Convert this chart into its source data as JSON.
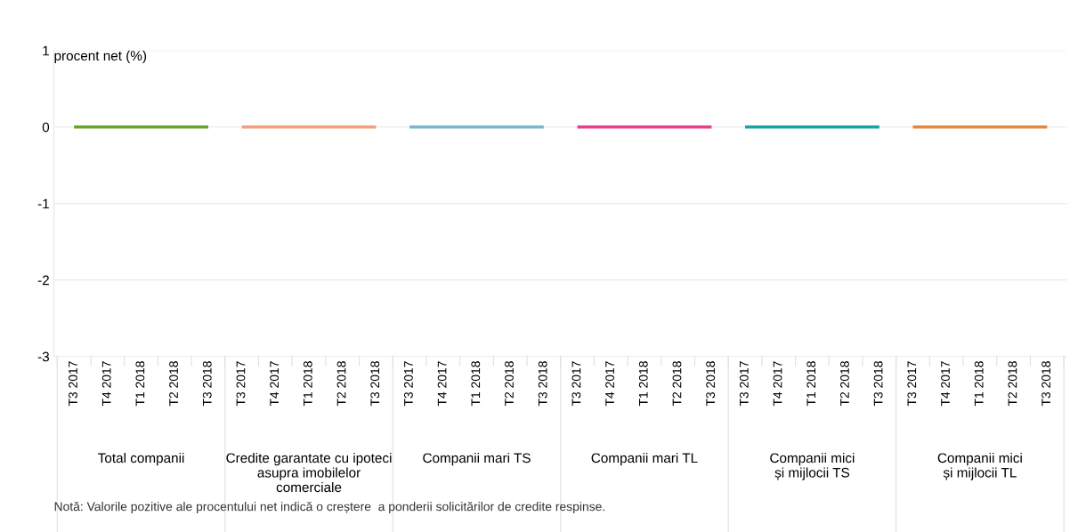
{
  "chart_data": {
    "type": "line",
    "ylabel": "procent net (%)",
    "categories": [
      "T3 2017",
      "T4 2017",
      "T1 2018",
      "T2 2018",
      "T3 2018",
      "T3 2017",
      "T4 2017",
      "T1 2018",
      "T2 2018",
      "T3 2018",
      "T3 2017",
      "T4 2017",
      "T1 2018",
      "T2 2018",
      "T3 2018",
      "T3 2017",
      "T4 2017",
      "T1 2018",
      "T2 2018",
      "T3 2018",
      "T3 2017",
      "T4 2017",
      "T1 2018",
      "T2 2018",
      "T3 2018",
      "T3 2017",
      "T4 2017",
      "T1 2018",
      "T2 2018",
      "T3 2018"
    ],
    "series": [
      {
        "color": "#6aa329",
        "values": [
          0,
          0,
          0,
          0,
          0,
          null,
          null,
          null,
          null,
          null,
          null,
          null,
          null,
          null,
          null,
          null,
          null,
          null,
          null,
          null,
          null,
          null,
          null,
          null,
          null,
          null,
          null,
          null,
          null,
          null
        ]
      },
      {
        "color": "#f4a07a",
        "values": [
          null,
          null,
          null,
          null,
          null,
          0,
          0,
          0,
          0,
          0,
          null,
          null,
          null,
          null,
          null,
          null,
          null,
          null,
          null,
          null,
          null,
          null,
          null,
          null,
          null,
          null,
          null,
          null,
          null,
          null
        ]
      },
      {
        "color": "#7ab8c9",
        "values": [
          null,
          null,
          null,
          null,
          null,
          null,
          null,
          null,
          null,
          null,
          0,
          0,
          0,
          0,
          0,
          null,
          null,
          null,
          null,
          null,
          null,
          null,
          null,
          null,
          null,
          null,
          null,
          null,
          null,
          null
        ]
      },
      {
        "color": "#e8408a",
        "values": [
          null,
          null,
          null,
          null,
          null,
          null,
          null,
          null,
          null,
          null,
          null,
          null,
          null,
          null,
          null,
          0,
          0,
          0,
          0,
          0,
          null,
          null,
          null,
          null,
          null,
          null,
          null,
          null,
          null,
          null
        ]
      },
      {
        "color": "#1aa3a3",
        "values": [
          null,
          null,
          null,
          null,
          null,
          null,
          null,
          null,
          null,
          null,
          null,
          null,
          null,
          null,
          null,
          null,
          null,
          null,
          null,
          null,
          0,
          0,
          0,
          0,
          0,
          null,
          null,
          null,
          null,
          null
        ]
      },
      {
        "color": "#e8883a",
        "values": [
          null,
          null,
          null,
          null,
          null,
          null,
          null,
          null,
          null,
          null,
          null,
          null,
          null,
          null,
          null,
          null,
          null,
          null,
          null,
          null,
          null,
          null,
          null,
          null,
          null,
          0,
          0,
          0,
          0,
          0
        ]
      }
    ],
    "ylim": [
      -3,
      1
    ],
    "yticks": [
      -3,
      -2,
      -1,
      0,
      1
    ],
    "grid": "y",
    "marker": "none",
    "line_style": "solid",
    "legend": false,
    "annotations": [
      "Total companii",
      "Credite garantate cu ipoteci\nasupra imobilelor\ncomerciale",
      "Companii mari TS",
      "Companii mari TL",
      "Companii mici\nși mijlocii TS",
      "Companii mici\nși mijlocii TL",
      "Notă: Valorile pozitive ale procentului net indică o creștere  a ponderii solicitărilor de credite respinse."
    ]
  }
}
